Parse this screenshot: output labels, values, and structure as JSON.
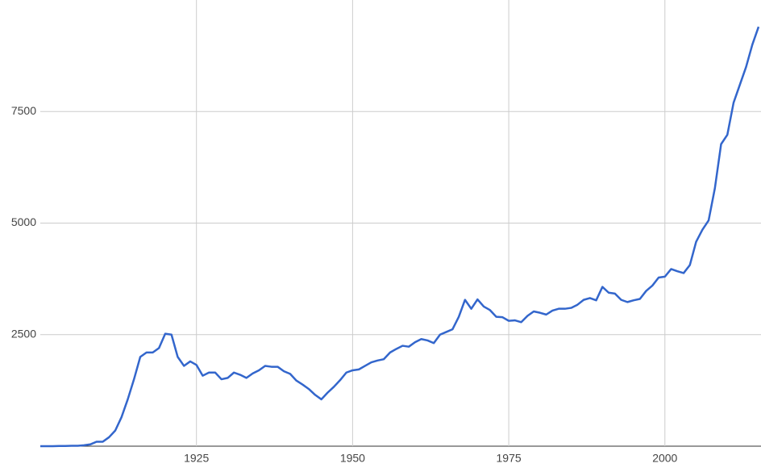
{
  "chart_data": {
    "type": "line",
    "x": [
      1900,
      1901,
      1902,
      1903,
      1904,
      1905,
      1906,
      1907,
      1908,
      1909,
      1910,
      1911,
      1912,
      1913,
      1914,
      1915,
      1916,
      1917,
      1918,
      1919,
      1920,
      1921,
      1922,
      1923,
      1924,
      1925,
      1926,
      1927,
      1928,
      1929,
      1930,
      1931,
      1932,
      1933,
      1934,
      1935,
      1936,
      1937,
      1938,
      1939,
      1940,
      1941,
      1942,
      1943,
      1944,
      1945,
      1946,
      1947,
      1948,
      1949,
      1950,
      1951,
      1952,
      1953,
      1954,
      1955,
      1956,
      1957,
      1958,
      1959,
      1960,
      1961,
      1962,
      1963,
      1964,
      1965,
      1966,
      1967,
      1968,
      1969,
      1970,
      1971,
      1972,
      1973,
      1974,
      1975,
      1976,
      1977,
      1978,
      1979,
      1980,
      1981,
      1982,
      1983,
      1984,
      1985,
      1986,
      1987,
      1988,
      1989,
      1990,
      1991,
      1992,
      1993,
      1994,
      1995,
      1996,
      1997,
      1998,
      1999,
      2000,
      2001,
      2002,
      2003,
      2004,
      2005,
      2006,
      2007,
      2008,
      2009,
      2010,
      2011,
      2012,
      2013,
      2014,
      2015
    ],
    "series": [
      {
        "color": "#3366cc",
        "values": [
          0,
          0,
          0,
          5,
          5,
          10,
          10,
          20,
          40,
          100,
          100,
          200,
          350,
          650,
          1050,
          1500,
          2000,
          2100,
          2100,
          2200,
          2520,
          2500,
          2000,
          1800,
          1900,
          1820,
          1580,
          1650,
          1650,
          1500,
          1530,
          1650,
          1600,
          1530,
          1630,
          1700,
          1800,
          1780,
          1780,
          1680,
          1620,
          1470,
          1380,
          1280,
          1150,
          1050,
          1200,
          1330,
          1480,
          1650,
          1700,
          1720,
          1800,
          1880,
          1920,
          1950,
          2100,
          2180,
          2250,
          2230,
          2330,
          2400,
          2370,
          2310,
          2500,
          2560,
          2620,
          2900,
          3280,
          3080,
          3290,
          3130,
          3050,
          2900,
          2890,
          2810,
          2820,
          2780,
          2920,
          3020,
          2990,
          2950,
          3040,
          3080,
          3080,
          3100,
          3170,
          3280,
          3320,
          3270,
          3570,
          3440,
          3420,
          3280,
          3230,
          3270,
          3300,
          3480,
          3600,
          3780,
          3800,
          3970,
          3920,
          3880,
          4060,
          4580,
          4850,
          5060,
          5780,
          6770,
          6980,
          7700,
          8100,
          8500,
          9000,
          9400
        ]
      }
    ],
    "xlim": [
      1900,
      2015
    ],
    "xticks": [
      1925,
      1950,
      1975,
      2000
    ],
    "ylim": [
      0,
      10000
    ],
    "yticks": [
      2500,
      5000,
      7500
    ],
    "grid": true
  }
}
